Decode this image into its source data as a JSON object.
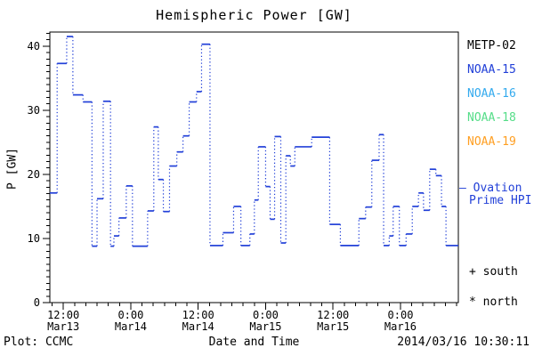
{
  "chart_data": {
    "type": "line",
    "title": "Hemispheric Power [GW]",
    "xlabel": "Date and Time",
    "ylabel": "P [GW]",
    "ylim": [
      0,
      42.2
    ],
    "y_major_ticks": [
      0,
      10,
      20,
      30,
      40
    ],
    "y_minor_step": 1,
    "x_range_hours": [
      9.6,
      82.3
    ],
    "x_minor_step_hours": 2,
    "x_major_every_hours": 12,
    "grid": false,
    "x_major_ticks": [
      {
        "t": 12,
        "time": "12:00",
        "date": "Mar13"
      },
      {
        "t": 24,
        "time": "0:00",
        "date": "Mar14"
      },
      {
        "t": 36,
        "time": "12:00",
        "date": "Mar14"
      },
      {
        "t": 48,
        "time": "0:00",
        "date": "Mar15"
      },
      {
        "t": 60,
        "time": "12:00",
        "date": "Mar15"
      },
      {
        "t": 72,
        "time": "0:00",
        "date": "Mar16"
      }
    ],
    "series": [
      {
        "name": "Ovation Prime HPI",
        "color": "#2240d8",
        "style": "step-dotted",
        "t_end": 82.3,
        "steps": [
          [
            9.6,
            17.1
          ],
          [
            10.9,
            37.3
          ],
          [
            12.6,
            41.5
          ],
          [
            13.7,
            32.4
          ],
          [
            15.5,
            31.3
          ],
          [
            17.1,
            8.8
          ],
          [
            18.0,
            16.2
          ],
          [
            19.1,
            31.4
          ],
          [
            20.4,
            8.8
          ],
          [
            21.0,
            10.4
          ],
          [
            21.9,
            13.2
          ],
          [
            23.2,
            18.2
          ],
          [
            24.3,
            8.8
          ],
          [
            27.0,
            14.3
          ],
          [
            28.1,
            27.4
          ],
          [
            28.9,
            19.2
          ],
          [
            29.8,
            14.2
          ],
          [
            30.9,
            21.3
          ],
          [
            32.2,
            23.5
          ],
          [
            33.3,
            26.0
          ],
          [
            34.4,
            31.3
          ],
          [
            35.7,
            32.9
          ],
          [
            36.6,
            40.3
          ],
          [
            38.1,
            8.9
          ],
          [
            40.4,
            10.9
          ],
          [
            42.3,
            15.0
          ],
          [
            43.6,
            8.9
          ],
          [
            45.2,
            10.7
          ],
          [
            46.0,
            16.0
          ],
          [
            46.7,
            24.3
          ],
          [
            48.0,
            18.1
          ],
          [
            48.8,
            13.0
          ],
          [
            49.6,
            25.9
          ],
          [
            50.7,
            9.3
          ],
          [
            51.6,
            22.9
          ],
          [
            52.4,
            21.3
          ],
          [
            53.2,
            24.3
          ],
          [
            56.2,
            25.8
          ],
          [
            59.4,
            12.2
          ],
          [
            61.3,
            8.9
          ],
          [
            64.6,
            13.1
          ],
          [
            65.8,
            14.9
          ],
          [
            66.9,
            22.2
          ],
          [
            68.2,
            26.2
          ],
          [
            69.0,
            8.9
          ],
          [
            70.0,
            10.4
          ],
          [
            70.7,
            15.0
          ],
          [
            71.8,
            8.9
          ],
          [
            73.0,
            10.7
          ],
          [
            74.1,
            15.0
          ],
          [
            75.2,
            17.1
          ],
          [
            76.1,
            14.4
          ],
          [
            77.2,
            20.8
          ],
          [
            78.3,
            19.8
          ],
          [
            79.3,
            15.0
          ],
          [
            80.1,
            8.9
          ]
        ]
      }
    ]
  },
  "legend": {
    "satellites": [
      {
        "label": "METP-02",
        "color": "#000000"
      },
      {
        "label": "NOAA-15",
        "color": "#2240d8"
      },
      {
        "label": "NOAA-16",
        "color": "#33aaee"
      },
      {
        "label": "NOAA-18",
        "color": "#55dd88"
      },
      {
        "label": "NOAA-19",
        "color": "#ff9f22"
      }
    ],
    "ovation": {
      "dash": "—",
      "line1": "Ovation",
      "line2": "Prime HPI",
      "color": "#2240d8"
    },
    "south_key": "+ south",
    "north_key": "* north"
  },
  "footer": {
    "plot_credit": "Plot: CCMC",
    "timestamp": "2014/03/16 10:30:11"
  },
  "colors": {
    "axis": "#000000",
    "background": "#ffffff",
    "line": "#2240d8"
  }
}
